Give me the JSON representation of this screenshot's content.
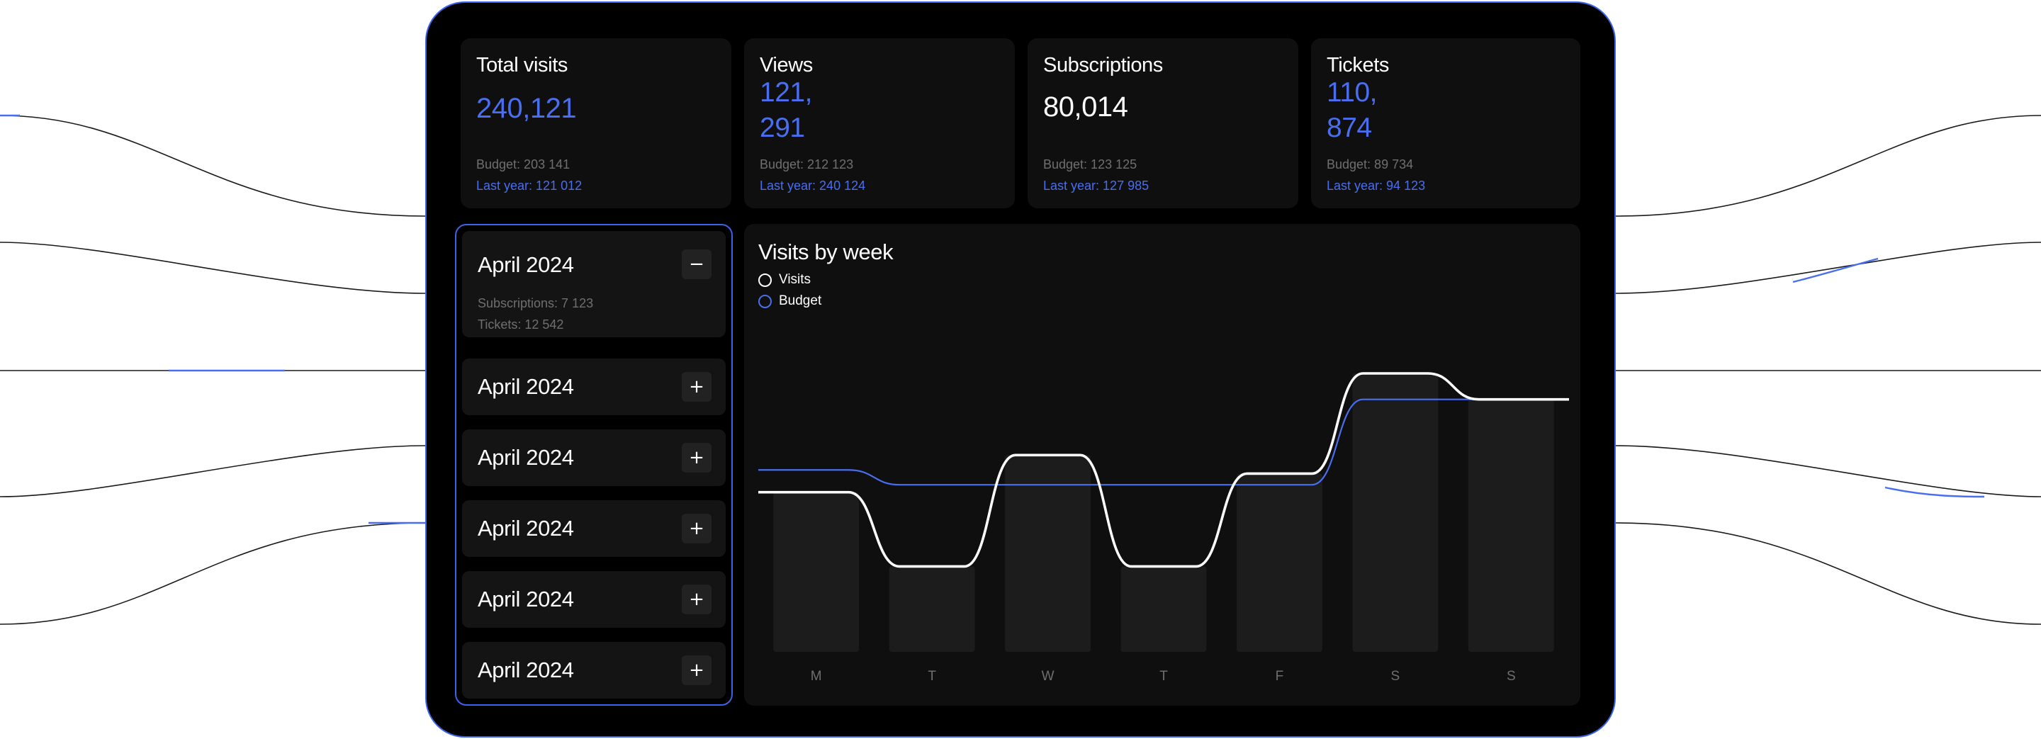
{
  "stats": [
    {
      "title": "Total visits",
      "value": "240,121",
      "budget": "Budget: 203 141",
      "last_year": "Last year: 121 012"
    },
    {
      "title": "Views",
      "value": "121,\n291",
      "budget": "Budget: 212 123",
      "last_year": "Last year: 240 124"
    },
    {
      "title": "Subscriptions",
      "value": "80,014",
      "budget": "Budget: 123 125",
      "last_year": "Last year: 127 985"
    },
    {
      "title": "Tickets",
      "value": "110,\n874",
      "budget": "Budget: 89 734",
      "last_year": "Last year: 94 123"
    }
  ],
  "accordion": {
    "items": [
      {
        "label": "April 2024",
        "toggle": "−",
        "details": [
          "Subscriptions: 7 123",
          "Tickets: 12 542"
        ]
      },
      {
        "label": "April 2024",
        "toggle": "+"
      },
      {
        "label": "April 2024",
        "toggle": "+"
      },
      {
        "label": "April 2024",
        "toggle": "+"
      },
      {
        "label": "April 2024",
        "toggle": "+"
      },
      {
        "label": "April 2024",
        "toggle": "+"
      }
    ]
  },
  "chart": {
    "title": "Visits by week",
    "legend": [
      "Visits",
      "Budget"
    ]
  },
  "colors": {
    "accent": "#4a6ef0",
    "card": "#0f0f0f",
    "bar": "#1c1c1c",
    "background": "#000000"
  },
  "chart_data": {
    "type": "bar",
    "title": "Visits by week",
    "categories": [
      "M",
      "T",
      "W",
      "T",
      "F",
      "S",
      "S"
    ],
    "series": [
      {
        "name": "Visits",
        "type": "bar+line",
        "values": [
          43,
          23,
          53,
          23,
          48,
          75,
          68
        ]
      },
      {
        "name": "Budget",
        "type": "line",
        "values": [
          49,
          45,
          45,
          45,
          45,
          68,
          68
        ]
      }
    ],
    "ylim": [
      0,
      100
    ],
    "grid": false,
    "legend": "top-left"
  }
}
